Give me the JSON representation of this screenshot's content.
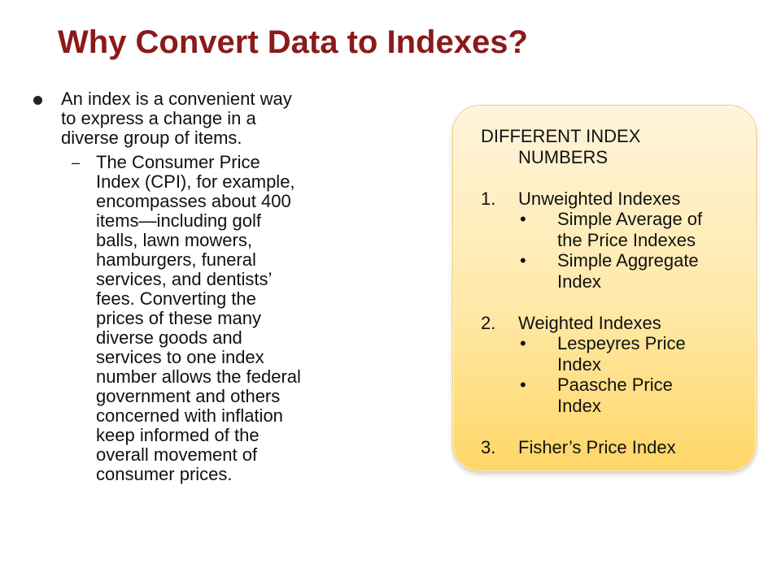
{
  "slide": {
    "title": "Why Convert Data to Indexes?",
    "main_bullet": {
      "lines": [
        "An index is a convenient way",
        "to express a change in a",
        "diverse group of items."
      ]
    },
    "sub_bullet": {
      "marker": "–",
      "lines": [
        "The Consumer Price",
        "Index (CPI), for example,",
        "encompasses about 400",
        "items—including golf",
        "balls, lawn mowers,",
        "hamburgers, funeral",
        "services, and dentists’",
        "fees. Converting the",
        "prices of these many",
        "diverse goods and",
        "services to one index",
        "number allows the federal",
        "government and others",
        "concerned with inflation",
        "keep informed of the",
        "overall movement of",
        "consumer prices."
      ]
    }
  },
  "index_box": {
    "heading_line1": "DIFFERENT INDEX",
    "heading_line2": "NUMBERS",
    "groups": [
      {
        "number": "1.",
        "label": "Unweighted Indexes",
        "items": [
          {
            "line1": "Simple Average of",
            "line2": "the Price Indexes"
          },
          {
            "line1": "Simple Aggregate",
            "line2": "Index"
          }
        ]
      },
      {
        "number": "2.",
        "label": "Weighted Indexes",
        "items": [
          {
            "line1": "Lespeyres Price",
            "line2": "Index"
          },
          {
            "line1": "Paasche Price",
            "line2": "Index"
          }
        ]
      },
      {
        "number": "3.",
        "label": "Fisher’s Price Index"
      }
    ],
    "bullet_marker": "•",
    "colors": {
      "title": "#8b1a1a",
      "box_top": "#fff4dc",
      "box_bottom": "#ffd566"
    }
  }
}
